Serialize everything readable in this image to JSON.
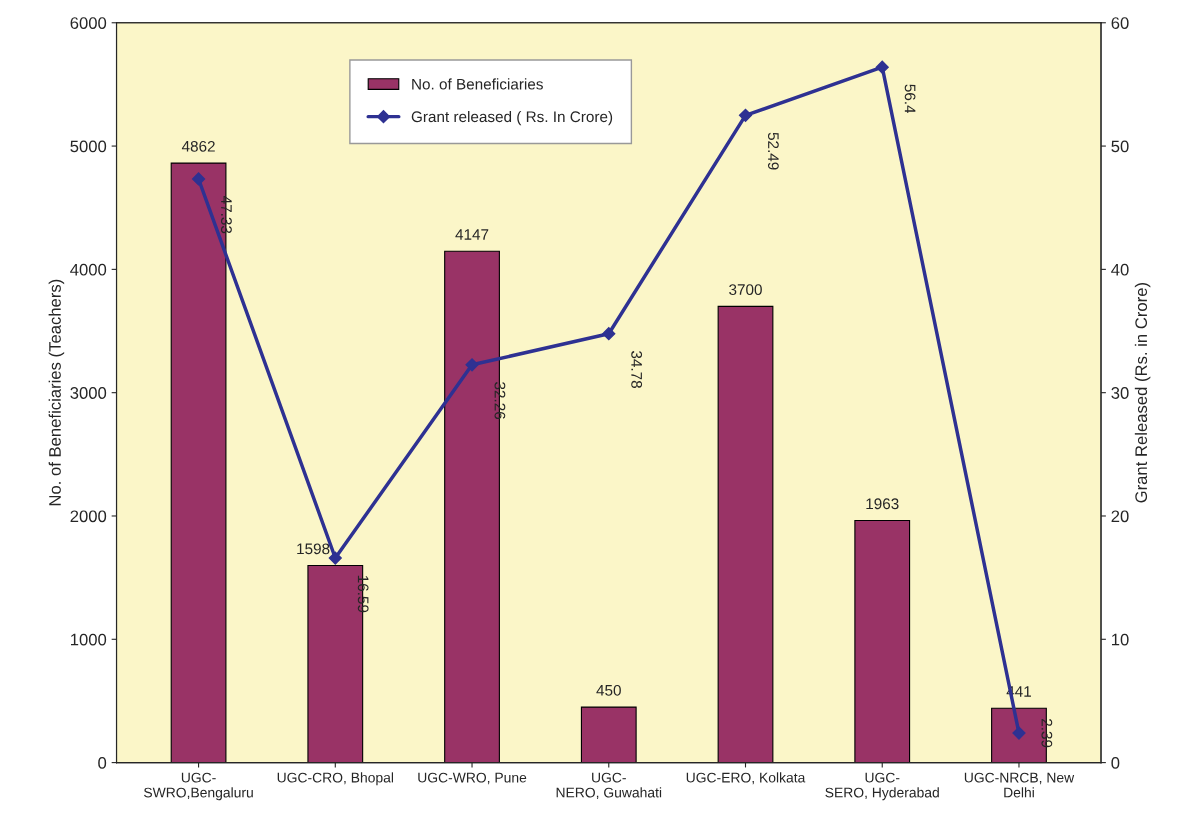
{
  "chart_data": {
    "type": "bar",
    "ylabel": "No. of Beneficiaries (Teachers)",
    "y2label": "Grant Released (Rs. in Crore)",
    "categories": [
      "UGC-\nSWRO,Bengaluru",
      "UGC-CRO, Bhopal",
      "UGC-WRO, Pune",
      "UGC-\nNERO, Guwahati",
      "UGC-ERO, Kolkata",
      "UGC-\nSERO, Hyderabad",
      "UGC-NRCB, New\nDelhi"
    ],
    "series": [
      {
        "name": "No. of Beneficiaries",
        "color": "#993366",
        "values": [
          4862,
          1598,
          4147,
          450,
          3700,
          1963,
          441
        ]
      },
      {
        "name": "Grant released ( Rs. In Crore)",
        "type": "line",
        "axis": "y2",
        "color": "#2e3192",
        "marker": "diamond",
        "values": [
          47.33,
          16.59,
          32.26,
          34.78,
          52.49,
          56.4,
          2.39
        ]
      }
    ],
    "ylim": [
      0,
      6000
    ],
    "yticks": [
      0,
      1000,
      2000,
      3000,
      4000,
      5000,
      6000
    ],
    "y2lim": [
      0,
      60
    ],
    "y2ticks": [
      0,
      10,
      20,
      30,
      40,
      50,
      60
    ],
    "data_labels": true,
    "grid": false,
    "legend": "top"
  }
}
